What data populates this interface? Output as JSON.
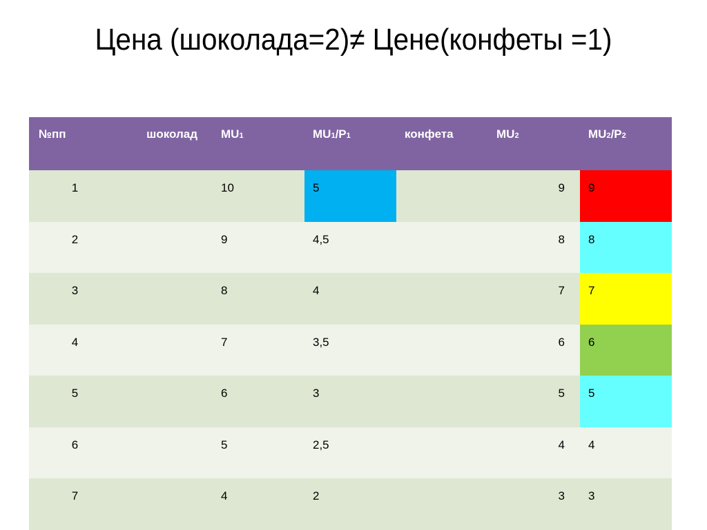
{
  "title": "Цена (шоколада=2)≠ Цене(конфеты =1)",
  "colors": {
    "header_bg": "#8064a2",
    "row_odd": "#dee7d1",
    "row_even": "#eff3ea",
    "blue": "#00b0f0",
    "red": "#ff0000",
    "cyan": "#66ffff",
    "yellow": "#ffff00",
    "green": "#92d050"
  },
  "table": {
    "headers": [
      "№пп",
      "шоколад",
      "MU1",
      "MU1/P1",
      "конфета",
      "MU2",
      "MU2/P2"
    ],
    "rows": [
      {
        "n": "1",
        "chocolate": "",
        "mu1": "10",
        "mu1p1": "5",
        "candy": "",
        "mu2": "9",
        "mu2p2": "9"
      },
      {
        "n": "2",
        "chocolate": "",
        "mu1": "9",
        "mu1p1": "4,5",
        "candy": "",
        "mu2": "8",
        "mu2p2": "8"
      },
      {
        "n": "3",
        "chocolate": "",
        "mu1": "8",
        "mu1p1": "4",
        "candy": "",
        "mu2": "7",
        "mu2p2": "7"
      },
      {
        "n": "4",
        "chocolate": "",
        "mu1": "7",
        "mu1p1": "3,5",
        "candy": "",
        "mu2": "6",
        "mu2p2": "6"
      },
      {
        "n": "5",
        "chocolate": "",
        "mu1": "6",
        "mu1p1": "3",
        "candy": "",
        "mu2": "5",
        "mu2p2": "5"
      },
      {
        "n": "6",
        "chocolate": "",
        "mu1": "5",
        "mu1p1": "2,5",
        "candy": "",
        "mu2": "4",
        "mu2p2": "4"
      },
      {
        "n": "7",
        "chocolate": "",
        "mu1": "4",
        "mu1p1": "2",
        "candy": "",
        "mu2": "3",
        "mu2p2": "3"
      }
    ]
  }
}
